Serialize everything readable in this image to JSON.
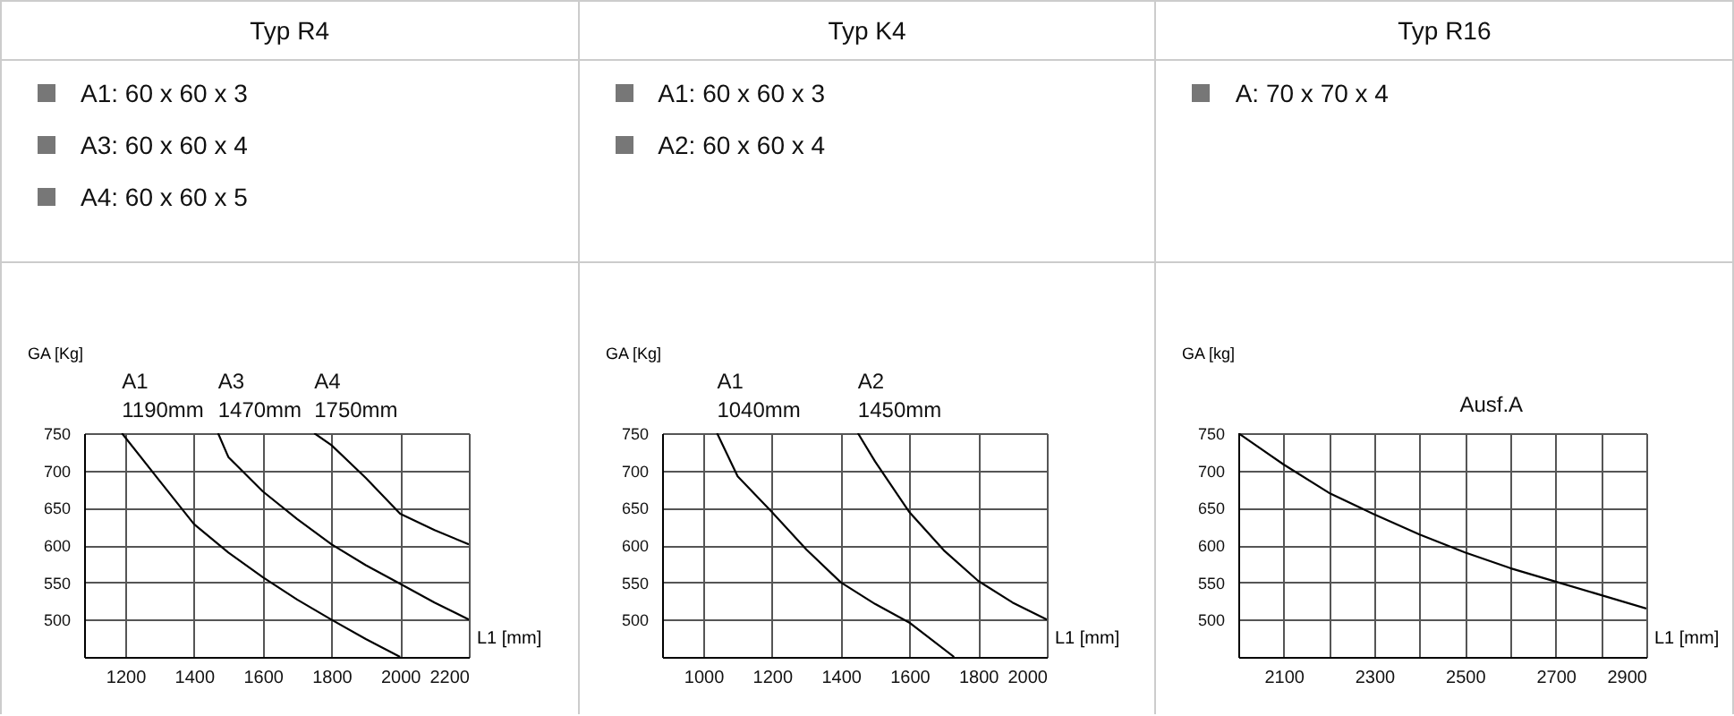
{
  "chart_data": [
    {
      "type": "line",
      "title": "Typ R4",
      "xlabel": "L1 [mm]",
      "ylabel": "GA [Kg]",
      "annotations": [
        "A1: 60 x 60 x 3",
        "A3: 60 x 60 x 4",
        "A4: 60 x 60 x 5"
      ],
      "series": [
        {
          "name": "A1\n1190mm",
          "color": "#000000",
          "x": [
            1190,
            1300,
            1400,
            1500,
            1600,
            1700,
            1800,
            1900,
            2000
          ],
          "values": [
            750,
            686,
            628,
            590,
            557,
            527,
            500,
            474,
            450
          ]
        },
        {
          "name": "A3\n1470mm",
          "color": "#000000",
          "x": [
            1470,
            1500,
            1600,
            1700,
            1800,
            1900,
            2000,
            2100,
            2200
          ],
          "values": [
            750,
            718,
            672,
            635,
            601,
            573,
            548,
            523,
            500
          ]
        },
        {
          "name": "A4\n1750mm",
          "color": "#000000",
          "x": [
            1750,
            1800,
            1900,
            2000,
            2100,
            2200
          ],
          "values": [
            750,
            734,
            690,
            642,
            620,
            601
          ]
        }
      ],
      "xlim": [
        1080,
        2200
      ],
      "ylim": [
        450,
        750
      ],
      "xticks": [
        1200,
        1400,
        1600,
        1800,
        2000,
        2200
      ],
      "yticks": [
        500,
        550,
        600,
        650,
        700,
        750
      ],
      "grid": true
    },
    {
      "type": "line",
      "title": "Typ K4",
      "xlabel": "L1 [mm]",
      "ylabel": "GA [Kg]",
      "annotations": [
        "A1: 60 x 60 x 3",
        "A2: 60 x 60 x 4"
      ],
      "series": [
        {
          "name": "A1\n1040mm",
          "color": "#000000",
          "x": [
            1040,
            1100,
            1200,
            1300,
            1400,
            1500,
            1600,
            1730
          ],
          "values": [
            750,
            692,
            644,
            594,
            550,
            521,
            496,
            450
          ]
        },
        {
          "name": "A2\n1450mm",
          "color": "#000000",
          "x": [
            1450,
            1500,
            1600,
            1700,
            1800,
            1900,
            2000
          ],
          "values": [
            750,
            712,
            644,
            593,
            552,
            523,
            500
          ]
        }
      ],
      "xlim": [
        880,
        2000
      ],
      "ylim": [
        450,
        750
      ],
      "xticks": [
        1000,
        1200,
        1400,
        1600,
        1800,
        2000
      ],
      "yticks": [
        500,
        550,
        600,
        650,
        700,
        750
      ],
      "grid": true
    },
    {
      "type": "line",
      "title": "Typ R16",
      "xlabel": "L1 [mm]",
      "ylabel": "GA [kg]",
      "annotations": [
        "A: 70 x 70 x 4"
      ],
      "series": [
        {
          "name": "Ausf.A",
          "color": "#000000",
          "x": [
            2000,
            2100,
            2200,
            2300,
            2400,
            2500,
            2600,
            2700,
            2800,
            2900
          ],
          "values": [
            750,
            708,
            670,
            641,
            614,
            590,
            569,
            551,
            533,
            515
          ]
        }
      ],
      "xlim": [
        2000,
        2900
      ],
      "ylim": [
        450,
        750
      ],
      "xticks": [
        {
          "value": 2100,
          "label": "2100"
        },
        {
          "value": 2200,
          "label": null
        },
        {
          "value": 2300,
          "label": "2300"
        },
        {
          "value": 2400,
          "label": null
        },
        {
          "value": 2500,
          "label": "2500"
        },
        {
          "value": 2600,
          "label": null
        },
        {
          "value": 2700,
          "label": "2700"
        },
        {
          "value": 2800,
          "label": null
        },
        {
          "value": 2900,
          "label": "2900"
        }
      ],
      "yticks": [
        500,
        550,
        600,
        650,
        700,
        750
      ],
      "grid": true
    }
  ]
}
